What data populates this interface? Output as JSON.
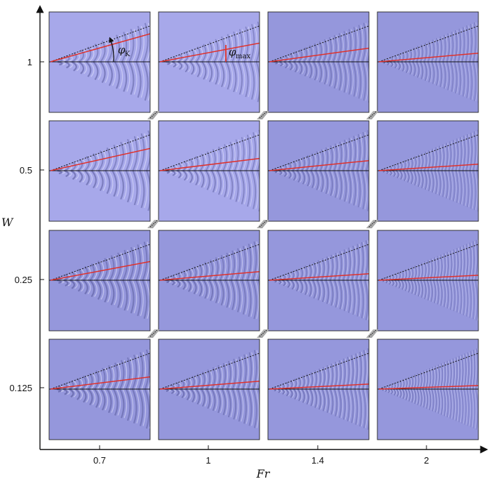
{
  "figure": {
    "x_axis_label": "Fr",
    "y_axis_label": "W",
    "x_ticks": [
      "0.7",
      "1",
      "1.4",
      "2"
    ],
    "y_ticks": [
      "1",
      "0.5",
      "0.25",
      "0.125"
    ],
    "annotations": {
      "kelvin_angle": {
        "symbol": "φ",
        "subscript": "K"
      },
      "max_angle": {
        "symbol": "φ",
        "subscript": "max"
      }
    },
    "colors": {
      "panel_fill": "#a7a8ea",
      "panel_fill_dark": "#9597dc",
      "crest_light": "#e4e6fb",
      "crest_dark": "#4d4f90",
      "kelvin_line": "#111111",
      "max_line": "#e0312b"
    },
    "panels": {
      "W_1": {
        "fr_0.7": 0.78,
        "fr_1": 0.52,
        "fr_1.4": 0.38,
        "fr_2": 0.24
      },
      "W_0.5": {
        "fr_0.7": 0.62,
        "fr_1": 0.34,
        "fr_1.4": 0.28,
        "fr_2": 0.18
      },
      "W_0.25": {
        "fr_0.7": 0.52,
        "fr_1": 0.24,
        "fr_1.4": 0.18,
        "fr_2": 0.14
      },
      "W_0.125": {
        "fr_0.7": 0.34,
        "fr_1": 0.22,
        "fr_1.4": 0.14,
        "fr_2": 0.1
      }
    }
  }
}
